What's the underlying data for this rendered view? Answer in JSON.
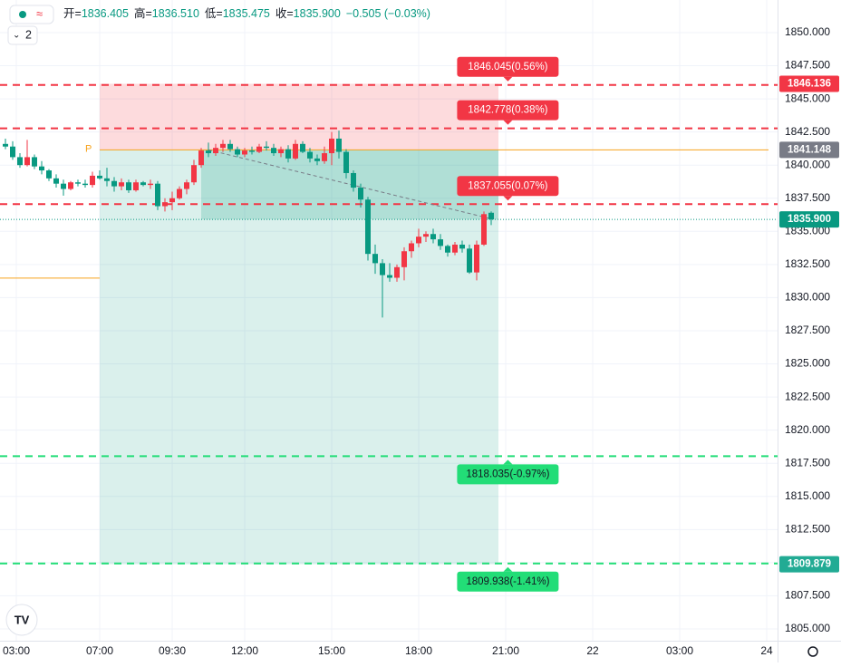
{
  "chart_data": {
    "type": "candlestick",
    "header": {
      "items": [
        {
          "k": "开=",
          "v": "1836.405"
        },
        {
          "k": "高=",
          "v": "1836.510"
        },
        {
          "k": "低=",
          "v": "1835.475"
        },
        {
          "k": "收=",
          "v": "1835.900"
        }
      ],
      "change": "−0.505 (−0.03%)",
      "interval_count": "2"
    },
    "up_color": "#f23645",
    "down_color": "#089981",
    "xlim": [
      -13.75,
      93.5
    ],
    "xticks": [
      {
        "value": -11.5,
        "label": "03:00"
      },
      {
        "value": 0,
        "label": "07:00"
      },
      {
        "value": 10,
        "label": "09:30"
      },
      {
        "value": 20,
        "label": "12:00"
      },
      {
        "value": 32,
        "label": "15:00"
      },
      {
        "value": 44,
        "label": "18:00"
      },
      {
        "value": 56,
        "label": "21:00"
      },
      {
        "value": 68,
        "label": "22"
      },
      {
        "value": 80,
        "label": "03:00"
      },
      {
        "value": 92,
        "label": "24"
      }
    ],
    "ylim": [
      1804.11,
      1852.46
    ],
    "yticks": [
      {
        "value": 1805,
        "label": "1805.000"
      },
      {
        "value": 1807.5,
        "label": "1807.500"
      },
      {
        "value": 1810,
        "label": "1810.000"
      },
      {
        "value": 1812.5,
        "label": "1812.500"
      },
      {
        "value": 1815,
        "label": "1815.000"
      },
      {
        "value": 1817.5,
        "label": "1817.500"
      },
      {
        "value": 1820,
        "label": "1820.000"
      },
      {
        "value": 1822.5,
        "label": "1822.500"
      },
      {
        "value": 1825,
        "label": "1825.000"
      },
      {
        "value": 1827.5,
        "label": "1827.500"
      },
      {
        "value": 1830,
        "label": "1830.000"
      },
      {
        "value": 1832.5,
        "label": "1832.500"
      },
      {
        "value": 1835,
        "label": "1835.000"
      },
      {
        "value": 1837.5,
        "label": "1837.500"
      },
      {
        "value": 1840,
        "label": "1840.000"
      },
      {
        "value": 1842.5,
        "label": "1842.500"
      },
      {
        "value": 1845,
        "label": "1845.000"
      },
      {
        "value": 1847.5,
        "label": "1847.500"
      },
      {
        "value": 1850,
        "label": "1850.000"
      }
    ],
    "grid": true,
    "x": [
      -13,
      -12,
      -11,
      -10,
      -9,
      -8,
      -7,
      -6,
      -5,
      -4,
      -3,
      -2,
      -1,
      0,
      1,
      2,
      3,
      4,
      5,
      6,
      7,
      8,
      9,
      10,
      11,
      12,
      13,
      14,
      15,
      16,
      17,
      18,
      19,
      20,
      21,
      22,
      23,
      24,
      25,
      26,
      27,
      28,
      29,
      30,
      31,
      32,
      33,
      34,
      35,
      36,
      37,
      38,
      39,
      40,
      41,
      42,
      43,
      44,
      45,
      46,
      47,
      48,
      49,
      50,
      51,
      52,
      53,
      54
    ],
    "open": [
      1841.6,
      1841.4,
      1840.6,
      1840.0,
      1840.6,
      1839.9,
      1839.6,
      1839.0,
      1838.6,
      1838.2,
      1838.7,
      1838.6,
      1838.5,
      1839.2,
      1839.0,
      1838.8,
      1838.4,
      1838.7,
      1838.1,
      1838.7,
      1838.5,
      1838.6,
      1836.9,
      1837.2,
      1837.5,
      1838.2,
      1838.7,
      1840.0,
      1841.1,
      1840.9,
      1841.3,
      1841.6,
      1841.2,
      1840.8,
      1841.1,
      1841.0,
      1841.4,
      1841.3,
      1840.9,
      1841.2,
      1840.5,
      1841.6,
      1841.0,
      1840.5,
      1840.3,
      1840.9,
      1842.0,
      1841.0,
      1839.4,
      1838.3,
      1837.4,
      1833.3,
      1832.6,
      1831.7,
      1831.5,
      1832.3,
      1833.5,
      1834.1,
      1834.6,
      1834.8,
      1834.4,
      1833.9,
      1833.4,
      1834.0,
      1833.7,
      1831.9,
      1834.0,
      1836.405
    ],
    "high": [
      1842.0,
      1841.8,
      1840.9,
      1841.9,
      1840.8,
      1840.3,
      1839.7,
      1839.3,
      1838.9,
      1838.8,
      1838.9,
      1838.9,
      1839.5,
      1839.6,
      1839.8,
      1839.1,
      1839.0,
      1838.9,
      1838.9,
      1838.8,
      1838.9,
      1838.8,
      1837.5,
      1838.0,
      1838.4,
      1838.9,
      1840.4,
      1841.3,
      1841.7,
      1841.6,
      1841.9,
      1841.9,
      1841.4,
      1841.3,
      1841.4,
      1841.6,
      1841.8,
      1841.6,
      1841.4,
      1841.5,
      1841.9,
      1841.8,
      1841.3,
      1840.8,
      1841.4,
      1842.5,
      1842.6,
      1841.2,
      1839.6,
      1838.6,
      1837.6,
      1834.0,
      1832.9,
      1832.6,
      1832.5,
      1833.8,
      1834.3,
      1835.2,
      1835.0,
      1835.2,
      1834.8,
      1834.0,
      1834.2,
      1834.3,
      1834.0,
      1834.3,
      1836.5,
      1836.51
    ],
    "low": [
      1841.2,
      1840.4,
      1839.8,
      1839.9,
      1839.7,
      1839.3,
      1838.8,
      1838.3,
      1837.7,
      1838.1,
      1838.4,
      1838.3,
      1838.3,
      1838.9,
      1838.4,
      1838.0,
      1838.1,
      1837.9,
      1838.0,
      1838.4,
      1838.2,
      1836.6,
      1836.5,
      1836.6,
      1837.4,
      1837.8,
      1838.5,
      1839.8,
      1840.6,
      1840.7,
      1841.0,
      1841.0,
      1840.6,
      1840.6,
      1840.8,
      1840.9,
      1841.1,
      1840.7,
      1840.6,
      1840.2,
      1840.4,
      1840.9,
      1840.2,
      1840.0,
      1840.1,
      1840.0,
      1840.5,
      1839.0,
      1838.0,
      1836.8,
      1832.8,
      1831.8,
      1828.5,
      1831.2,
      1831.2,
      1831.3,
      1833.0,
      1833.8,
      1834.2,
      1834.1,
      1833.6,
      1833.1,
      1833.2,
      1833.4,
      1831.8,
      1831.3,
      1833.9,
      1835.475
    ],
    "close": [
      1841.4,
      1840.6,
      1840.0,
      1840.6,
      1839.9,
      1839.6,
      1839.0,
      1838.6,
      1838.2,
      1838.7,
      1838.6,
      1838.5,
      1839.2,
      1839.0,
      1838.8,
      1838.4,
      1838.7,
      1838.1,
      1838.7,
      1838.5,
      1838.6,
      1836.9,
      1837.2,
      1837.5,
      1838.2,
      1838.7,
      1840.0,
      1841.1,
      1840.9,
      1841.3,
      1841.6,
      1841.2,
      1840.8,
      1841.1,
      1841.0,
      1841.4,
      1841.3,
      1840.9,
      1841.2,
      1840.5,
      1841.6,
      1841.0,
      1840.5,
      1840.3,
      1840.9,
      1842.0,
      1841.0,
      1839.4,
      1838.3,
      1837.4,
      1833.3,
      1832.6,
      1831.7,
      1831.5,
      1832.3,
      1833.5,
      1834.1,
      1834.6,
      1834.8,
      1834.4,
      1833.9,
      1833.4,
      1834.0,
      1833.7,
      1831.9,
      1834.0,
      1836.3,
      1835.9
    ],
    "position": {
      "start": 0,
      "end": 55,
      "progress_start": 14,
      "entry": 1841.148,
      "target": 1846.136,
      "stop": 1809.879,
      "entry_label": "P",
      "entry_color": "#f7a21b",
      "target_fill": "rgba(242,54,69,0.18)",
      "stop_fill": "rgba(8,153,129,0.15)",
      "progress_fill": "rgba(8,153,129,0.2)"
    },
    "previous_line": {
      "value": 1831.47,
      "color": "#f7a21b"
    },
    "trend_line": {
      "x": [
        15,
        54
      ],
      "y": [
        1841.15,
        1835.95
      ]
    },
    "levels": [
      {
        "value": 1846.045,
        "label": "1846.045(0.56%)",
        "color": "#f23645",
        "side": "above"
      },
      {
        "value": 1842.778,
        "label": "1842.778(0.38%)",
        "color": "#f23645",
        "side": "above"
      },
      {
        "value": 1837.055,
        "label": "1837.055(0.07%)",
        "color": "#f23645",
        "side": "above"
      },
      {
        "value": 1818.035,
        "label": "1818.035(-0.97%)",
        "color": "#22dd77",
        "side": "below"
      },
      {
        "value": 1809.938,
        "label": "1809.938(-1.41%)",
        "color": "#22dd77",
        "side": "below"
      }
    ],
    "level_tag_x": 56.3,
    "price_tags": [
      {
        "value": 1846.136,
        "label": "1846.136",
        "color": "#f23645"
      },
      {
        "value": 1841.148,
        "label": "1841.148",
        "color": "#787b86"
      },
      {
        "value": 1835.9,
        "label": "1835.900",
        "color": "#089981"
      },
      {
        "value": 1809.879,
        "label": "1809.879",
        "color": "#22ab94"
      }
    ]
  }
}
